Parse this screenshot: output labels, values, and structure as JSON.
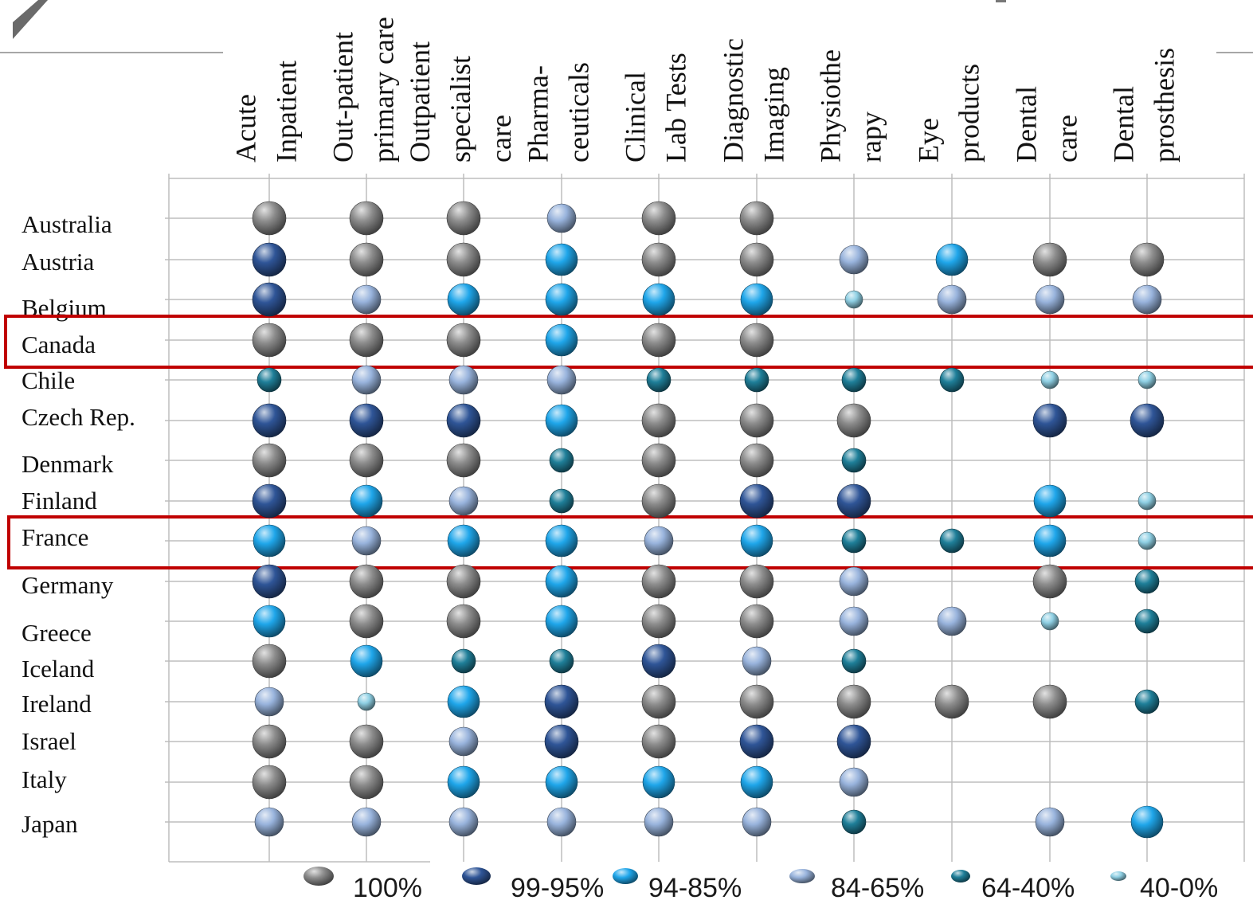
{
  "chart_data": {
    "type": "table",
    "columns": [
      "Acute Inpatient",
      "Out-patient primary care",
      "Outpatient specialist care",
      "Pharma-ceuticals",
      "Clinical Lab Tests",
      "Diagnostic Imaging",
      "Physiotherapy",
      "Eye products",
      "Dental care",
      "Dental prosthesis"
    ],
    "column_label_lines": [
      [
        "Acute",
        "Inpatient"
      ],
      [
        "Out-patient",
        "primary care"
      ],
      [
        "Outpatient",
        "specialist",
        "care"
      ],
      [
        "Pharma-",
        "ceuticals"
      ],
      [
        "Clinical",
        "Lab Tests"
      ],
      [
        "Diagnostic",
        "Imaging"
      ],
      [
        "Physiothe",
        "rapy"
      ],
      [
        "Eye",
        "products"
      ],
      [
        "Dental",
        "care"
      ],
      [
        "Dental",
        "prosthesis"
      ]
    ],
    "rows": [
      {
        "country": "Australia",
        "values": [
          "100%",
          "100%",
          "100%",
          "84-65%",
          "100%",
          "100%",
          null,
          null,
          null,
          null
        ]
      },
      {
        "country": "Austria",
        "values": [
          "99-95%",
          "100%",
          "100%",
          "94-85%",
          "100%",
          "100%",
          "84-65%",
          "94-85%",
          "100%",
          "100%"
        ]
      },
      {
        "country": "Belgium",
        "values": [
          "99-95%",
          "84-65%",
          "94-85%",
          "94-85%",
          "94-85%",
          "94-85%",
          "40-0%",
          "84-65%",
          "84-65%",
          "84-65%"
        ]
      },
      {
        "country": "Canada",
        "values": [
          "100%",
          "100%",
          "100%",
          "94-85%",
          "100%",
          "100%",
          null,
          null,
          null,
          null
        ]
      },
      {
        "country": "Chile",
        "values": [
          "64-40%",
          "84-65%",
          "84-65%",
          "84-65%",
          "64-40%",
          "64-40%",
          "64-40%",
          "64-40%",
          "40-0%",
          "40-0%"
        ]
      },
      {
        "country": "Czech Rep.",
        "values": [
          "99-95%",
          "99-95%",
          "99-95%",
          "94-85%",
          "100%",
          "100%",
          "100%",
          null,
          "99-95%",
          "99-95%"
        ]
      },
      {
        "country": "Denmark",
        "values": [
          "100%",
          "100%",
          "100%",
          "64-40%",
          "100%",
          "100%",
          "64-40%",
          null,
          null,
          null
        ]
      },
      {
        "country": "Finland",
        "values": [
          "99-95%",
          "94-85%",
          "84-65%",
          "64-40%",
          "100%",
          "99-95%",
          "99-95%",
          null,
          "94-85%",
          "40-0%"
        ]
      },
      {
        "country": "France",
        "values": [
          "94-85%",
          "84-65%",
          "94-85%",
          "94-85%",
          "84-65%",
          "94-85%",
          "64-40%",
          "64-40%",
          "94-85%",
          "40-0%"
        ]
      },
      {
        "country": "Germany",
        "values": [
          "99-95%",
          "100%",
          "100%",
          "94-85%",
          "100%",
          "100%",
          "84-65%",
          null,
          "100%",
          "64-40%"
        ]
      },
      {
        "country": "Greece",
        "values": [
          "94-85%",
          "100%",
          "100%",
          "94-85%",
          "100%",
          "100%",
          "84-65%",
          "84-65%",
          "40-0%",
          "64-40%"
        ]
      },
      {
        "country": "Iceland",
        "values": [
          "100%",
          "94-85%",
          "64-40%",
          "64-40%",
          "99-95%",
          "84-65%",
          "64-40%",
          null,
          null,
          null
        ]
      },
      {
        "country": "Ireland",
        "values": [
          "84-65%",
          "40-0%",
          "94-85%",
          "99-95%",
          "100%",
          "100%",
          "100%",
          "100%",
          "100%",
          "64-40%"
        ]
      },
      {
        "country": "Israel",
        "values": [
          "100%",
          "100%",
          "84-65%",
          "99-95%",
          "100%",
          "99-95%",
          "99-95%",
          null,
          null,
          null
        ]
      },
      {
        "country": "Italy",
        "values": [
          "100%",
          "100%",
          "94-85%",
          "94-85%",
          "94-85%",
          "94-85%",
          "84-65%",
          null,
          null,
          null
        ]
      },
      {
        "country": "Japan",
        "values": [
          "84-65%",
          "84-65%",
          "84-65%",
          "84-65%",
          "84-65%",
          "84-65%",
          "64-40%",
          null,
          "84-65%",
          "94-85%"
        ]
      }
    ],
    "highlighted_rows": [
      "Canada",
      "France"
    ],
    "highlight_color": "#c00000",
    "legend": [
      {
        "label": "100%",
        "color": "#8c8c8c"
      },
      {
        "label": "99-95%",
        "color": "#2f5597"
      },
      {
        "label": "94-85%",
        "color": "#1fa6ea"
      },
      {
        "label": "84-65%",
        "color": "#98b3dc"
      },
      {
        "label": "64-40%",
        "color": "#1f7f99"
      },
      {
        "label": "40-0%",
        "color": "#8fd0e4"
      }
    ],
    "legend_position": "bottom",
    "grid": true
  }
}
